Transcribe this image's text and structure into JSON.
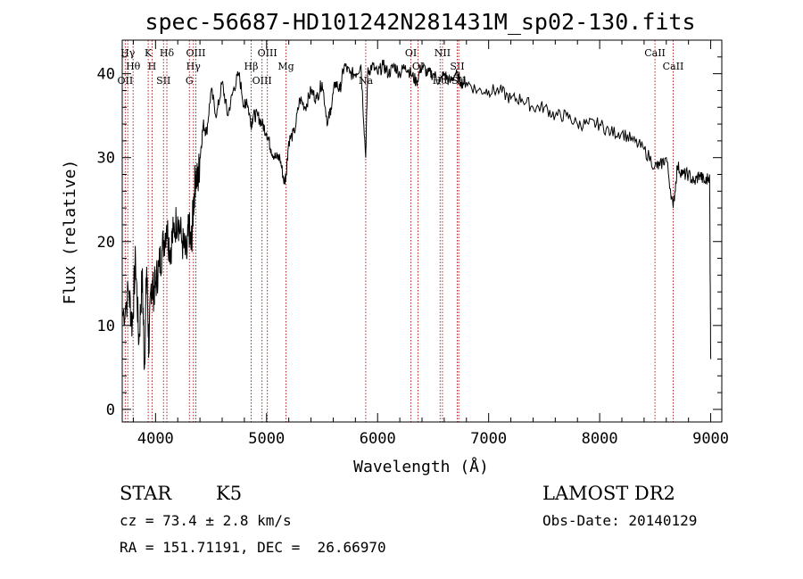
{
  "chart_data": {
    "type": "line",
    "title": "spec-56687-HD101242N281431M_sp02-130.fits",
    "xlabel": "Wavelength (Å)",
    "ylabel": "Flux (relative)",
    "xlim": [
      3700,
      9100
    ],
    "ylim": [
      -1.5,
      44
    ],
    "xticks": [
      4000,
      5000,
      6000,
      7000,
      8000,
      9000
    ],
    "yticks": [
      0,
      10,
      20,
      30,
      40
    ],
    "grid": false,
    "series": [
      {
        "color": "#000000",
        "x": [
          3700,
          3760,
          3790,
          3820,
          3850,
          3880,
          3900,
          3920,
          3940,
          3960,
          3980,
          4000,
          4030,
          4060,
          4100,
          4130,
          4160,
          4200,
          4240,
          4280,
          4300,
          4320,
          4340,
          4360,
          4380,
          4400,
          4430,
          4460,
          4500,
          4550,
          4600,
          4650,
          4700,
          4750,
          4800,
          4820,
          4861,
          4880,
          4920,
          4960,
          5000,
          5040,
          5080,
          5120,
          5160,
          5175,
          5200,
          5250,
          5300,
          5350,
          5400,
          5450,
          5500,
          5550,
          5580,
          5620,
          5660,
          5700,
          5750,
          5800,
          5850,
          5893,
          5910,
          5950,
          6000,
          6050,
          6100,
          6150,
          6200,
          6250,
          6300,
          6350,
          6400,
          6450,
          6500,
          6563,
          6600,
          6650,
          6700,
          6750,
          6800,
          6900,
          7000,
          7100,
          7200,
          7300,
          7400,
          7500,
          7600,
          7700,
          7800,
          7900,
          8000,
          8100,
          8200,
          8300,
          8400,
          8498,
          8542,
          8600,
          8662,
          8700,
          8750,
          8800,
          8850,
          8900,
          8950,
          8990,
          9000
        ],
        "y": [
          11,
          14,
          10,
          18,
          8,
          16,
          5,
          17,
          7,
          15,
          14,
          15,
          17,
          19,
          22,
          19,
          21,
          23,
          20,
          18,
          22,
          19,
          24,
          28,
          27,
          30,
          34,
          33,
          38,
          35,
          39,
          35,
          38,
          40,
          36,
          37,
          34,
          35,
          35,
          34,
          33,
          31,
          30,
          30,
          27,
          28,
          32,
          33,
          37,
          36,
          38,
          37,
          39,
          34,
          36,
          39,
          38,
          41,
          40,
          40,
          41,
          30,
          40,
          41,
          40,
          41,
          40,
          41,
          40,
          41,
          40,
          39,
          41,
          40,
          40,
          39,
          40,
          39,
          40,
          39,
          39,
          38,
          38,
          38,
          37,
          37,
          36,
          36,
          35,
          35,
          34,
          34,
          34,
          33,
          33,
          32,
          31,
          29,
          29,
          30,
          24,
          29,
          28,
          28,
          27,
          28,
          27,
          28,
          6
        ]
      }
    ],
    "lines": [
      {
        "name": "Hγ",
        "x": 3750
      },
      {
        "name": "Hθ",
        "x": 3798
      },
      {
        "name": "OII",
        "x": 3727
      },
      {
        "name": "K",
        "x": 3934
      },
      {
        "name": "H",
        "x": 3969
      },
      {
        "name": "SII",
        "x": 4072
      },
      {
        "name": "Hδ",
        "x": 4102
      },
      {
        "name": "Hγ",
        "x": 4341
      },
      {
        "name": "G",
        "x": 4305
      },
      {
        "name": "OIII",
        "x": 4363
      },
      {
        "name": "Hβ",
        "x": 4861
      },
      {
        "name": "OIII",
        "x": 4959
      },
      {
        "name": "OIII",
        "x": 5007
      },
      {
        "name": "Mg",
        "x": 5175
      },
      {
        "name": "Na",
        "x": 5893
      },
      {
        "name": "OI",
        "x": 6300
      },
      {
        "name": "OI",
        "x": 6364
      },
      {
        "name": "Hα",
        "x": 6563
      },
      {
        "name": "NII",
        "x": 6584
      },
      {
        "name": "SII",
        "x": 6717
      },
      {
        "name": "SII",
        "x": 6731
      },
      {
        "name": "CaII",
        "x": 8498
      },
      {
        "name": "CaII",
        "x": 8662
      }
    ]
  },
  "info": {
    "class": "STAR",
    "subclass": "K5",
    "survey": "LAMOST DR2",
    "cz": "cz = 73.4 ± 2.8 km/s",
    "obs_date": "Obs-Date: 20140129",
    "radec": "RA = 151.71191, DEC =  26.66970"
  }
}
